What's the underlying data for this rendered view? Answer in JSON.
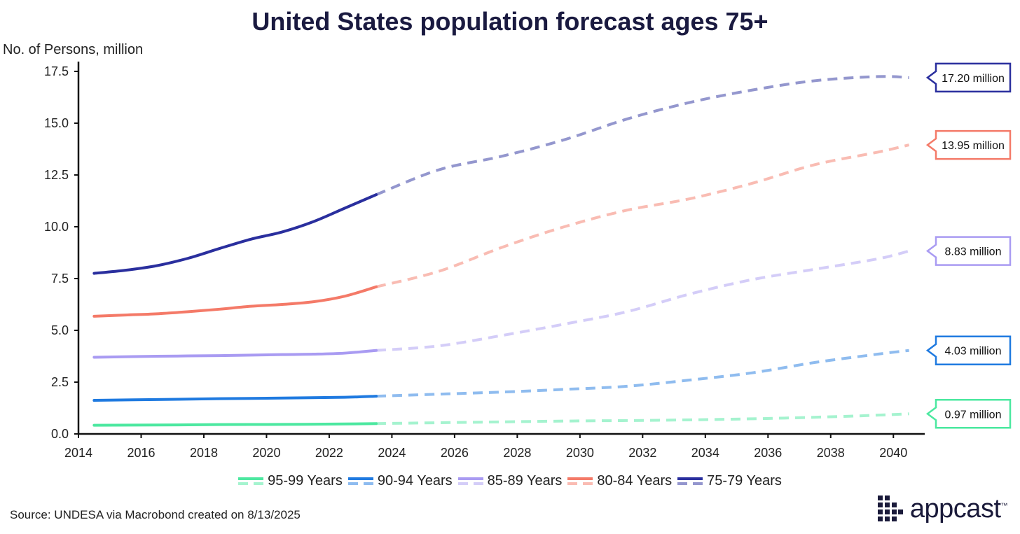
{
  "chart_data": {
    "type": "line",
    "title": "United States population forecast ages 75+",
    "ylabel": "No. of Persons, million",
    "xlabel": "",
    "xlim": [
      2014,
      2041
    ],
    "ylim": [
      0,
      17.5
    ],
    "x_ticks": [
      "2014",
      "2016",
      "2018",
      "2020",
      "2022",
      "2024",
      "2026",
      "2028",
      "2030",
      "2032",
      "2034",
      "2036",
      "2038",
      "2040"
    ],
    "y_ticks": [
      "0.0",
      "2.5",
      "5.0",
      "7.5",
      "10.0",
      "12.5",
      "15.0",
      "17.5"
    ],
    "forecast_start": 2023.5,
    "legend_position": "bottom",
    "series": [
      {
        "name": "95-99 Years",
        "color": "#4ce8a0",
        "end_label": "0.97 million",
        "points": [
          [
            2014.5,
            0.42
          ],
          [
            2016.5,
            0.43
          ],
          [
            2018.5,
            0.45
          ],
          [
            2020.5,
            0.46
          ],
          [
            2022.5,
            0.48
          ],
          [
            2023.5,
            0.5
          ],
          [
            2026.5,
            0.56
          ],
          [
            2029.5,
            0.62
          ],
          [
            2032.5,
            0.66
          ],
          [
            2035.5,
            0.73
          ],
          [
            2038.5,
            0.85
          ],
          [
            2040.5,
            0.97
          ]
        ]
      },
      {
        "name": "90-94 Years",
        "color": "#1f7ae0",
        "end_label": "4.03 million",
        "points": [
          [
            2014.5,
            1.62
          ],
          [
            2016.5,
            1.66
          ],
          [
            2018.5,
            1.7
          ],
          [
            2020.5,
            1.73
          ],
          [
            2022.5,
            1.77
          ],
          [
            2023.5,
            1.82
          ],
          [
            2025.5,
            1.92
          ],
          [
            2027.5,
            2.02
          ],
          [
            2029.5,
            2.15
          ],
          [
            2031.5,
            2.3
          ],
          [
            2033.5,
            2.6
          ],
          [
            2035.5,
            2.95
          ],
          [
            2037.5,
            3.45
          ],
          [
            2039.5,
            3.85
          ],
          [
            2040.5,
            4.03
          ]
        ]
      },
      {
        "name": "85-89 Years",
        "color": "#a99bf2",
        "end_label": "8.83 million",
        "points": [
          [
            2014.5,
            3.7
          ],
          [
            2016.5,
            3.75
          ],
          [
            2018.5,
            3.78
          ],
          [
            2020.5,
            3.83
          ],
          [
            2021.5,
            3.85
          ],
          [
            2022.5,
            3.9
          ],
          [
            2023.5,
            4.03
          ],
          [
            2025.5,
            4.25
          ],
          [
            2027.5,
            4.75
          ],
          [
            2029.5,
            5.3
          ],
          [
            2031.5,
            5.9
          ],
          [
            2033.5,
            6.75
          ],
          [
            2035.5,
            7.45
          ],
          [
            2037.5,
            7.95
          ],
          [
            2039.5,
            8.45
          ],
          [
            2040.5,
            8.83
          ]
        ]
      },
      {
        "name": "80-84 Years",
        "color": "#f47a68",
        "end_label": "13.95 million",
        "points": [
          [
            2014.5,
            5.68
          ],
          [
            2015.5,
            5.74
          ],
          [
            2016.5,
            5.8
          ],
          [
            2017.5,
            5.9
          ],
          [
            2018.5,
            6.02
          ],
          [
            2019.5,
            6.16
          ],
          [
            2020.5,
            6.25
          ],
          [
            2021.5,
            6.38
          ],
          [
            2022.5,
            6.65
          ],
          [
            2023.5,
            7.1
          ],
          [
            2025.5,
            7.85
          ],
          [
            2027.5,
            9.0
          ],
          [
            2029.5,
            10.0
          ],
          [
            2031.5,
            10.8
          ],
          [
            2033.5,
            11.35
          ],
          [
            2035.5,
            12.1
          ],
          [
            2037.5,
            13.0
          ],
          [
            2039.5,
            13.6
          ],
          [
            2040.5,
            13.95
          ]
        ]
      },
      {
        "name": "75-79 Years",
        "color": "#2a2f9e",
        "end_label": "17.20 million",
        "points": [
          [
            2014.5,
            7.75
          ],
          [
            2015.5,
            7.9
          ],
          [
            2016.5,
            8.12
          ],
          [
            2017.5,
            8.48
          ],
          [
            2018.5,
            8.95
          ],
          [
            2019.5,
            9.4
          ],
          [
            2020.5,
            9.75
          ],
          [
            2021.5,
            10.25
          ],
          [
            2022.5,
            10.9
          ],
          [
            2023.5,
            11.55
          ],
          [
            2025.5,
            12.75
          ],
          [
            2027.5,
            13.4
          ],
          [
            2029.5,
            14.2
          ],
          [
            2031.5,
            15.2
          ],
          [
            2033.5,
            16.0
          ],
          [
            2035.5,
            16.6
          ],
          [
            2037.5,
            17.05
          ],
          [
            2039.5,
            17.25
          ],
          [
            2040.5,
            17.2
          ]
        ]
      }
    ]
  },
  "footer": {
    "source": "Source: UNDESA via Macrobond created on 8/13/2025",
    "logo_text": "appcast",
    "logo_tm": "™"
  }
}
